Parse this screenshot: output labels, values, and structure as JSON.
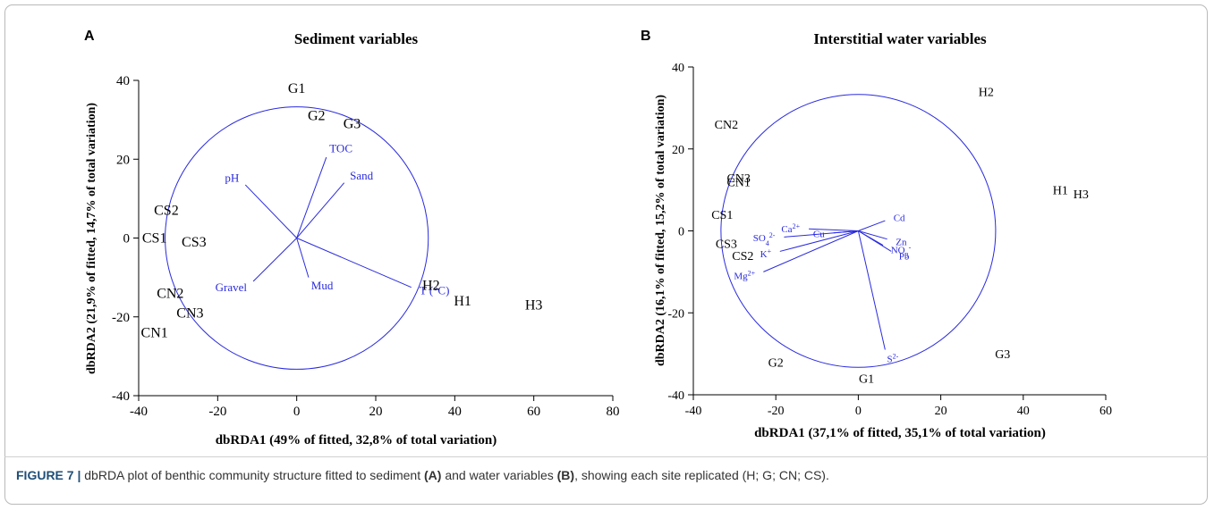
{
  "chart_data": [
    {
      "type": "scatter",
      "panel": "A",
      "title": "Sediment variables",
      "xlabel": "dbRDA1 (49% of fitted, 32,8% of total variation)",
      "ylabel": "dbRDA2 (21,9% of fitted, 14,7% of total variation)",
      "xlim": [
        -40,
        80
      ],
      "ylim": [
        -40,
        40
      ],
      "xticks": [
        -40,
        -20,
        0,
        20,
        40,
        60,
        80
      ],
      "yticks": [
        -40,
        -20,
        0,
        20,
        40
      ],
      "circle_radius": 33.3,
      "points": [
        {
          "label": "G1",
          "x": 0,
          "y": 38
        },
        {
          "label": "G2",
          "x": 5,
          "y": 31
        },
        {
          "label": "G3",
          "x": 14,
          "y": 29
        },
        {
          "label": "CS2",
          "x": -33,
          "y": 7
        },
        {
          "label": "CS1",
          "x": -36,
          "y": 0
        },
        {
          "label": "CS3",
          "x": -26,
          "y": -1
        },
        {
          "label": "CN2",
          "x": -32,
          "y": -14
        },
        {
          "label": "CN3",
          "x": -27,
          "y": -19
        },
        {
          "label": "CN1",
          "x": -36,
          "y": -24
        },
        {
          "label": "H2",
          "x": 34,
          "y": -12
        },
        {
          "label": "H1",
          "x": 42,
          "y": -16
        },
        {
          "label": "H3",
          "x": 60,
          "y": -17
        }
      ],
      "vectors": [
        {
          "label": "TOC",
          "x": 7.5,
          "y": 20.5
        },
        {
          "label": "Sand",
          "x": 12,
          "y": 14
        },
        {
          "label": "pH",
          "x": -13,
          "y": 13.5
        },
        {
          "label": "Gravel",
          "x": -11,
          "y": -11
        },
        {
          "label": "Mud",
          "x": 3,
          "y": -10
        },
        {
          "label": "T (°C)",
          "x": 29,
          "y": -12.5
        }
      ]
    },
    {
      "type": "scatter",
      "panel": "B",
      "title": "Interstitial water variables",
      "xlabel": "dbRDA1 (37,1% of fitted, 35,1% of total variation)",
      "ylabel": "dbRDA2 (16,1% of fitted, 15,2% of total variation)",
      "xlim": [
        -40,
        60
      ],
      "ylim": [
        -40,
        40
      ],
      "xticks": [
        -40,
        -20,
        0,
        20,
        40,
        60
      ],
      "yticks": [
        -40,
        -20,
        0,
        20,
        40
      ],
      "circle_radius": 33.3,
      "points": [
        {
          "label": "H2",
          "x": 31,
          "y": 34
        },
        {
          "label": "CN2",
          "x": -32,
          "y": 26
        },
        {
          "label": "CN3",
          "x": -29,
          "y": 13
        },
        {
          "label": "CN1",
          "x": -29,
          "y": 12
        },
        {
          "label": "H1",
          "x": 49,
          "y": 10
        },
        {
          "label": "H3",
          "x": 54,
          "y": 9
        },
        {
          "label": "CS1",
          "x": -33,
          "y": 4
        },
        {
          "label": "CS3",
          "x": -32,
          "y": -3
        },
        {
          "label": "CS2",
          "x": -28,
          "y": -6
        },
        {
          "label": "G3",
          "x": 35,
          "y": -30
        },
        {
          "label": "G2",
          "x": -20,
          "y": -32
        },
        {
          "label": "G1",
          "x": 2,
          "y": -36
        }
      ],
      "vectors": [
        {
          "label": "Cd",
          "x": 6.5,
          "y": 2.5,
          "sup": ""
        },
        {
          "label": "Ca",
          "x": -12,
          "y": 0.5,
          "sup": "2+"
        },
        {
          "label": "SO",
          "x": -18,
          "y": -1.5,
          "sub": "4",
          "sup": "2-"
        },
        {
          "label": "K",
          "x": -19,
          "y": -5,
          "sup": "+"
        },
        {
          "label": "Cu",
          "x": -6,
          "y": -0.5,
          "sup": ""
        },
        {
          "label": "Mg",
          "x": -23,
          "y": -10,
          "sup": "2+"
        },
        {
          "label": "Zn",
          "x": 7,
          "y": -2,
          "sup": ""
        },
        {
          "label": "NO",
          "x": 6,
          "y": -3.5,
          "sub": "3",
          "sup": "-"
        },
        {
          "label": "Pb",
          "x": 8,
          "y": -5,
          "sup": ""
        },
        {
          "label": "S",
          "x": 6.5,
          "y": -29,
          "sup": "2-"
        }
      ]
    }
  ],
  "colors": {
    "axis": "#000000",
    "vector": "#2a2adf",
    "text_blue": "#2a2adf",
    "frame": "#b9b9b9",
    "caption_blue": "#1f4e79"
  },
  "caption": {
    "figure_label": "FIGURE 7 |",
    "part1": " dbRDA plot of benthic community structure fitted to sediment ",
    "ref_a": "(A)",
    "part2": " and water variables ",
    "ref_b": "(B)",
    "part3": ", showing each site replicated (H; G; CN; CS)."
  }
}
